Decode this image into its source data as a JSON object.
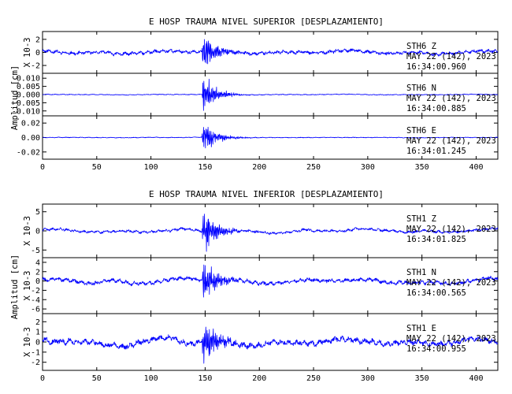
{
  "colors": {
    "trace": "#0000ff",
    "axis": "#000000",
    "background": "#ffffff"
  },
  "chart_data": [
    {
      "type": "line",
      "title": "E HOSP TRAUMA NIVEL SUPERIOR [DESPLAZAMIENTO]",
      "xlim": [
        0,
        420
      ],
      "xticks": [
        0,
        50,
        100,
        150,
        200,
        250,
        300,
        350,
        400
      ],
      "ylabel": "Amplitud [cm]",
      "panels": [
        {
          "station": "STH6",
          "component": "Z",
          "date": "MAY 22 (142), 2023",
          "time": "16:34:00.960",
          "scale_label": "X 10-3",
          "ylim": [
            -3.2,
            3.2
          ],
          "yticks": [
            -2,
            0,
            2
          ],
          "yticklabels": [
            "-2",
            "0",
            "2"
          ],
          "wave": {
            "quake_amp": 2.9,
            "noise_amp": 0.35,
            "drift_amp": 0.35,
            "seed": 11
          }
        },
        {
          "station": "STH6",
          "component": "N",
          "date": "MAY 22 (142), 2023",
          "time": "16:34:00.885",
          "scale_label": "",
          "ylim": [
            -0.013,
            0.013
          ],
          "yticks": [
            -0.01,
            -0.005,
            0,
            0.005,
            0.01
          ],
          "yticklabels": [
            "-0.010",
            "-0.005",
            "0.000",
            "0.005",
            "0.010"
          ],
          "wave": {
            "quake_amp": 0.0125,
            "noise_amp": 0.0003,
            "drift_amp": 0.0002,
            "seed": 23
          }
        },
        {
          "station": "STH6",
          "component": "E",
          "date": "MAY 22 (142), 2023",
          "time": "16:34:01.245",
          "scale_label": "",
          "ylim": [
            -0.03,
            0.03
          ],
          "yticks": [
            -0.02,
            0,
            0.02
          ],
          "yticklabels": [
            "-0.02",
            "0.00",
            "0.02"
          ],
          "wave": {
            "quake_amp": 0.027,
            "noise_amp": 0.0006,
            "drift_amp": 0.0003,
            "seed": 37
          }
        }
      ]
    },
    {
      "type": "line",
      "title": "E HOSP TRAUMA NIVEL INFERIOR [DESPLAZAMIENTO]",
      "xlim": [
        0,
        420
      ],
      "xticks": [
        0,
        50,
        100,
        150,
        200,
        250,
        300,
        350,
        400
      ],
      "ylabel": "Amplitud [cm]",
      "panels": [
        {
          "station": "STH1",
          "component": "Z",
          "date": "MAY 22 (142), 2023",
          "time": "16:34:01.825",
          "scale_label": "X 10-3",
          "ylim": [
            -7,
            7
          ],
          "yticks": [
            -5,
            0,
            5
          ],
          "yticklabels": [
            "-5",
            "0",
            "5"
          ],
          "wave": {
            "quake_amp": 6.5,
            "noise_amp": 0.45,
            "drift_amp": 0.6,
            "seed": 41
          }
        },
        {
          "station": "STH1",
          "component": "N",
          "date": "MAY 22 (142), 2023",
          "time": "16:34:00.565",
          "scale_label": "X 10-3",
          "ylim": [
            -7,
            5
          ],
          "yticks": [
            -6,
            -4,
            -2,
            0,
            2,
            4
          ],
          "yticklabels": [
            "-6",
            "-4",
            "-2",
            "0",
            "2",
            "4"
          ],
          "wave": {
            "quake_amp": 5.5,
            "noise_amp": 0.55,
            "drift_amp": 0.7,
            "seed": 53
          }
        },
        {
          "station": "STH1",
          "component": "E",
          "date": "MAY 22 (142), 2023",
          "time": "16:34:00.955",
          "scale_label": "X 10-3",
          "ylim": [
            -2.8,
            2.8
          ],
          "yticks": [
            -2,
            -1,
            0,
            1,
            2
          ],
          "yticklabels": [
            "-2",
            "-1",
            "0",
            "1",
            "2"
          ],
          "wave": {
            "quake_amp": 2.6,
            "noise_amp": 0.35,
            "drift_amp": 0.45,
            "seed": 67
          }
        }
      ]
    }
  ]
}
